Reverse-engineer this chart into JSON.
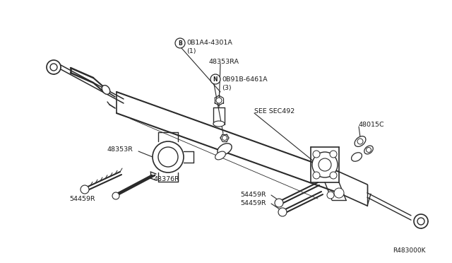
{
  "bg_color": "#ffffff",
  "line_color": "#2a2a2a",
  "text_color": "#1a1a1a",
  "fig_width": 6.4,
  "fig_height": 3.72,
  "dpi": 100,
  "labels": {
    "part1_b": "B",
    "part1": "0B1A4-4301A\n(1)",
    "part2": "48353RA",
    "part3_n": "N",
    "part3": "0B91B-6461A\n(3)",
    "part4": "SEE SEC492",
    "part5": "48015C",
    "part6": "48353R",
    "part7": "48376R",
    "part8": "54459R",
    "part9": "54459R",
    "part10": "54459R",
    "ref": "R483000K"
  }
}
